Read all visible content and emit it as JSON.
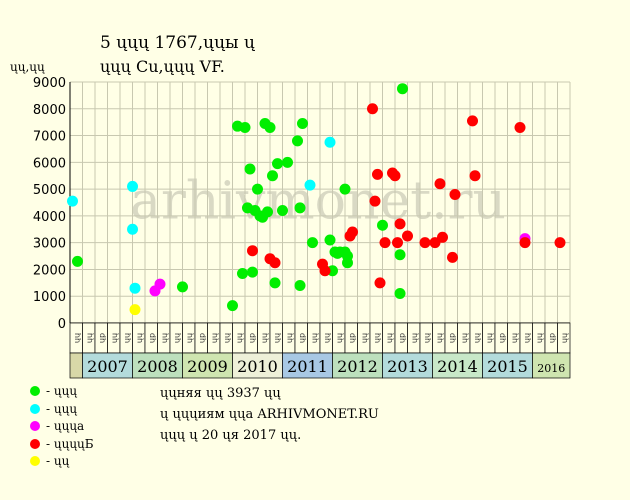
{
  "title_line1": "5 ųųų 1767,ųųы ų",
  "title_line2": "ųųų Cu,ųųų VF.",
  "chart_data": {
    "type": "scatter",
    "ylabel": "ųų,ųų",
    "ylim": [
      0,
      9000
    ],
    "yticks": [
      0,
      1000,
      2000,
      3000,
      4000,
      5000,
      6000,
      7000,
      8000,
      9000
    ],
    "grid": true,
    "watermark": "arhivmonet.ru",
    "xlim": [
      2006.75,
      2016.75
    ],
    "months_per_year": [
      "ųų",
      "ųр",
      "ųų",
      "ųų"
    ],
    "years": [
      {
        "label": "2007",
        "start": 2007,
        "color": "#b3dbdb"
      },
      {
        "label": "2008",
        "start": 2008,
        "color": "#bde0bd"
      },
      {
        "label": "2009",
        "start": 2009,
        "color": "#cfe5b0"
      },
      {
        "label": "2010",
        "start": 2010,
        "color": "#eef0d8"
      },
      {
        "label": "2011",
        "start": 2011,
        "color": "#a8c8e4"
      },
      {
        "label": "2012",
        "start": 2012,
        "color": "#bde0bd"
      },
      {
        "label": "2013",
        "start": 2013,
        "color": "#b3dbdb"
      },
      {
        "label": "2014",
        "start": 2014,
        "color": "#c8e8c8"
      },
      {
        "label": "2015",
        "start": 2015,
        "color": "#b3dbdb"
      },
      {
        "label": "2016",
        "start": 2016,
        "color": "#cfe5b0"
      }
    ],
    "series": [
      {
        "name": "ųųų",
        "color": "#00ee00",
        "points": [
          [
            2006.9,
            2300
          ],
          [
            2009.0,
            1350
          ],
          [
            2010.0,
            650
          ],
          [
            2010.1,
            7350
          ],
          [
            2010.2,
            1850
          ],
          [
            2010.25,
            7300
          ],
          [
            2010.3,
            4300
          ],
          [
            2010.35,
            5750
          ],
          [
            2010.4,
            1900
          ],
          [
            2010.45,
            4200
          ],
          [
            2010.5,
            5000
          ],
          [
            2010.55,
            4000
          ],
          [
            2010.6,
            3950
          ],
          [
            2010.65,
            7450
          ],
          [
            2010.7,
            4150
          ],
          [
            2010.75,
            7300
          ],
          [
            2010.8,
            5500
          ],
          [
            2010.85,
            1500
          ],
          [
            2010.9,
            5950
          ],
          [
            2011.0,
            4200
          ],
          [
            2011.1,
            6000
          ],
          [
            2011.3,
            6800
          ],
          [
            2011.35,
            4300
          ],
          [
            2011.4,
            7450
          ],
          [
            2011.35,
            1400
          ],
          [
            2011.6,
            3000
          ],
          [
            2011.95,
            3100
          ],
          [
            2012.0,
            1950
          ],
          [
            2012.05,
            2650
          ],
          [
            2012.1,
            2600
          ],
          [
            2012.15,
            2650
          ],
          [
            2012.25,
            2650
          ],
          [
            2012.25,
            5000
          ],
          [
            2012.3,
            2250
          ],
          [
            2012.3,
            2500
          ],
          [
            2013.0,
            3650
          ],
          [
            2013.4,
            8750
          ],
          [
            2013.35,
            2550
          ],
          [
            2013.35,
            1100
          ]
        ]
      },
      {
        "name": "ųųų",
        "color": "#00ffff",
        "points": [
          [
            2006.8,
            4550
          ],
          [
            2008.0,
            5100
          ],
          [
            2008.0,
            3500
          ],
          [
            2008.05,
            1300
          ],
          [
            2011.55,
            5150
          ],
          [
            2011.95,
            6750
          ]
        ]
      },
      {
        "name": "ųųųа",
        "color": "#ff00ff",
        "points": [
          [
            2008.45,
            1200
          ],
          [
            2008.55,
            1450
          ],
          [
            2015.85,
            3150
          ]
        ]
      },
      {
        "name": "ųųųųБ",
        "color": "#ff0000",
        "points": [
          [
            2010.4,
            2700
          ],
          [
            2010.75,
            2400
          ],
          [
            2010.85,
            2250
          ],
          [
            2011.8,
            2200
          ],
          [
            2011.85,
            1950
          ],
          [
            2012.35,
            3250
          ],
          [
            2012.4,
            3400
          ],
          [
            2012.8,
            8000
          ],
          [
            2012.85,
            4550
          ],
          [
            2012.9,
            5550
          ],
          [
            2012.95,
            1500
          ],
          [
            2013.05,
            3000
          ],
          [
            2013.2,
            5600
          ],
          [
            2013.25,
            5500
          ],
          [
            2013.3,
            3000
          ],
          [
            2013.35,
            3700
          ],
          [
            2013.5,
            3250
          ],
          [
            2013.85,
            3000
          ],
          [
            2014.05,
            3000
          ],
          [
            2014.15,
            5200
          ],
          [
            2014.2,
            3200
          ],
          [
            2014.4,
            2450
          ],
          [
            2014.45,
            4800
          ],
          [
            2014.8,
            7550
          ],
          [
            2014.85,
            5500
          ],
          [
            2015.75,
            7300
          ],
          [
            2015.85,
            3000
          ],
          [
            2016.55,
            3000
          ]
        ]
      },
      {
        "name": "ųų",
        "color": "#ffff00",
        "points": [
          [
            2008.05,
            500
          ]
        ]
      }
    ]
  },
  "legend": [
    {
      "label": "- ųųų",
      "color": "#00ee00"
    },
    {
      "label": "- ųųų",
      "color": "#00ffff"
    },
    {
      "label": "- ųųųа",
      "color": "#ff00ff"
    },
    {
      "label": "- ųųųųБ",
      "color": "#ff0000"
    },
    {
      "label": "- ųų",
      "color": "#ffff00"
    }
  ],
  "notes": [
    "ųųняя ųų 3937 ųų",
    "ų ųųųиям ųųа ARHIVMONET.RU",
    "ųųų ų 20 ųя 2017 ųų."
  ]
}
